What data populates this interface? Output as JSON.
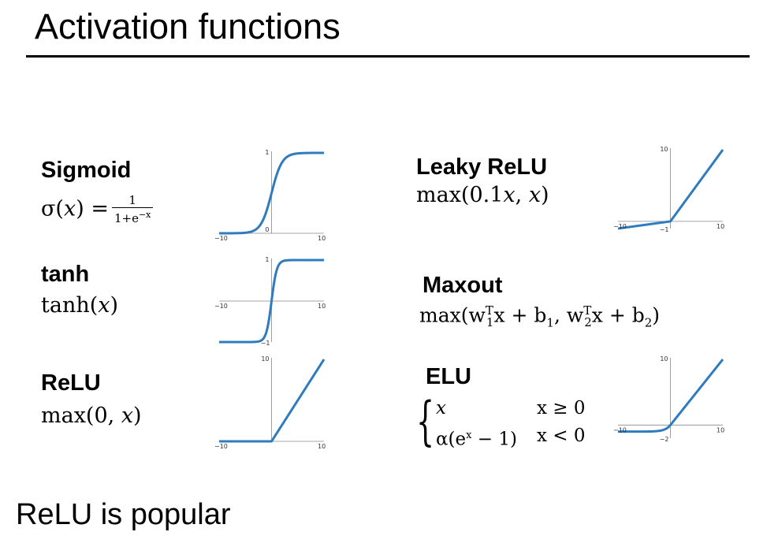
{
  "title": "Activation functions",
  "footer": "ReLU is popular",
  "colors": {
    "curve": "#2e7bbd",
    "axis": "#888888",
    "text": "#000000"
  },
  "functions": {
    "sigmoid": {
      "name": "Sigmoid",
      "lhs": "σ(",
      "var": "x",
      "eq": ") =",
      "num": "1",
      "den_base": "1+e",
      "den_exp": "−x"
    },
    "tanh": {
      "name": "tanh",
      "fn": "tanh(",
      "var": "x",
      "close": ")"
    },
    "relu": {
      "name": "ReLU",
      "fn": "max(0, ",
      "var": "x",
      "close": ")"
    },
    "leaky": {
      "name": "Leaky ReLU",
      "fn": "max(0.1",
      "var": "x",
      "mid": ", ",
      "var2": "x",
      "close": ")"
    },
    "maxout": {
      "name": "Maxout",
      "text": "max(w",
      "s1": "T",
      "b1": "1",
      "p1": "x + b",
      "bb1": "1",
      "c1": ", w",
      "s2": "T",
      "b2": "2",
      "p2": "x + b",
      "bb2": "2",
      "close": ")"
    },
    "elu": {
      "name": "ELU",
      "case1_expr": "x",
      "case1_cond": "x ≥ 0",
      "case2_expr_a": "α(e",
      "case2_exp": "x",
      "case2_expr_b": " − 1)",
      "case2_cond": "x < 0"
    }
  },
  "chart_data": [
    {
      "type": "line",
      "function": "sigmoid",
      "x": [
        -10,
        10
      ],
      "ylim": [
        0,
        1
      ],
      "tick_labels": {
        "x_min": "−10",
        "x_max": "10",
        "y_top": "1",
        "origin": "0"
      }
    },
    {
      "type": "line",
      "function": "tanh",
      "x": [
        -10,
        10
      ],
      "ylim": [
        -1,
        1
      ],
      "tick_labels": {
        "x_min": "−10",
        "x_max": "10",
        "y_top": "1",
        "y_bottom": "−1"
      }
    },
    {
      "type": "line",
      "function": "relu",
      "x": [
        -10,
        10
      ],
      "ylim": [
        0,
        10
      ],
      "tick_labels": {
        "x_min": "−10",
        "x_max": "10",
        "y_top": "10"
      }
    },
    {
      "type": "line",
      "function": "leaky_relu",
      "x": [
        -10,
        10
      ],
      "ylim": [
        -1,
        10
      ],
      "tick_labels": {
        "x_min": "−10",
        "x_max": "10",
        "y_top": "10",
        "y_bottom": "−1"
      }
    },
    {
      "type": "line",
      "function": "elu",
      "x": [
        -10,
        10
      ],
      "ylim": [
        -2,
        10
      ],
      "tick_labels": {
        "x_min": "−10",
        "x_max": "10",
        "y_top": "10",
        "y_bottom": "−2"
      }
    }
  ]
}
